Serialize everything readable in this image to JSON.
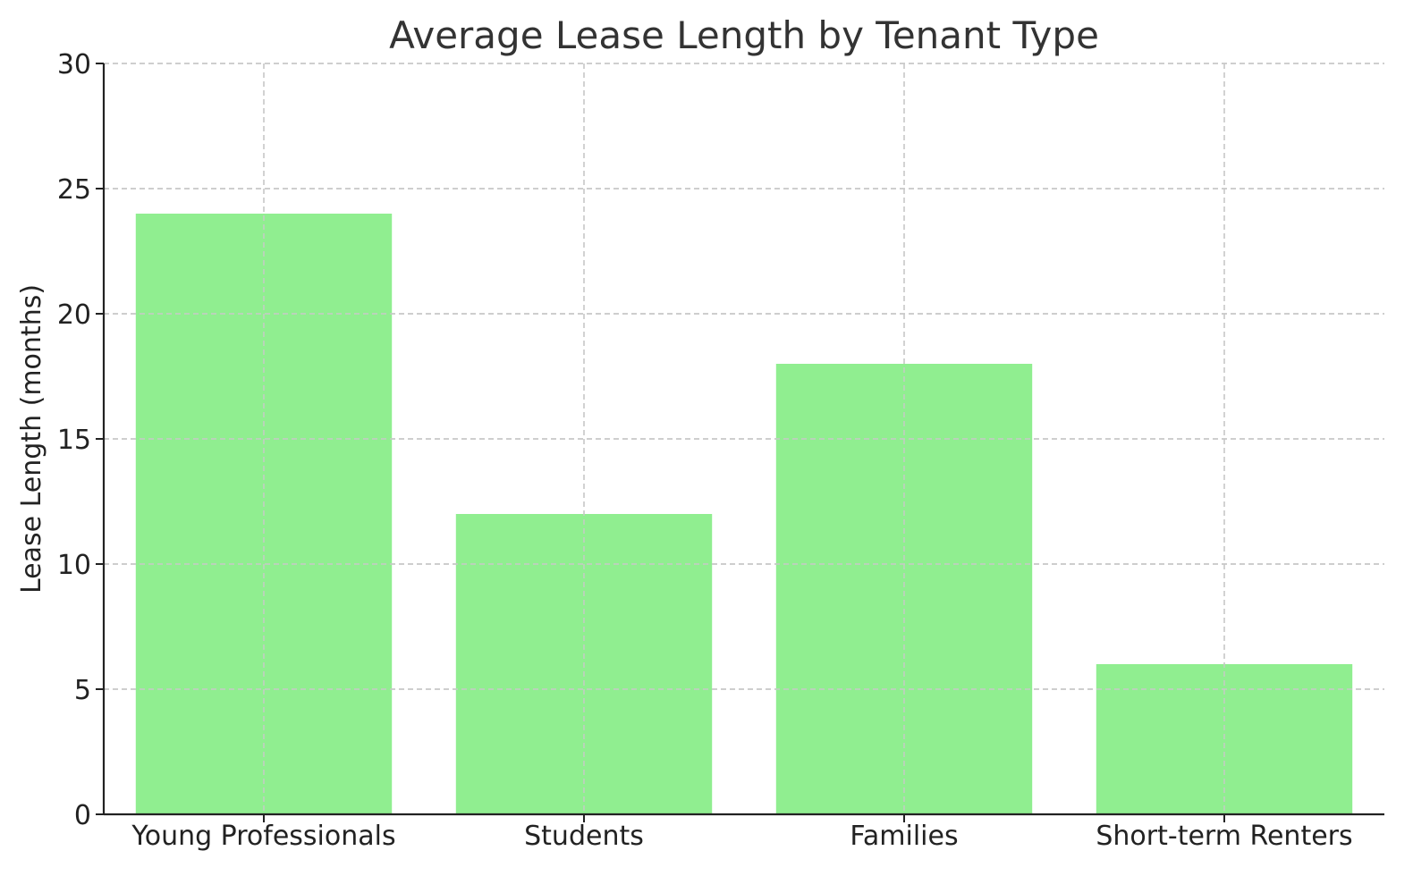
{
  "chart_data": {
    "type": "bar",
    "title": "Average Lease Length by Tenant Type",
    "xlabel": "",
    "ylabel": "Lease Length (months)",
    "categories": [
      "Young Professionals",
      "Students",
      "Families",
      "Short-term Renters"
    ],
    "values": [
      24,
      12,
      18,
      6
    ],
    "ylim": [
      0,
      30
    ],
    "yticks": [
      0,
      5,
      10,
      15,
      20,
      25,
      30
    ],
    "bar_color": "#90ee90",
    "grid": true,
    "legend": "none"
  }
}
